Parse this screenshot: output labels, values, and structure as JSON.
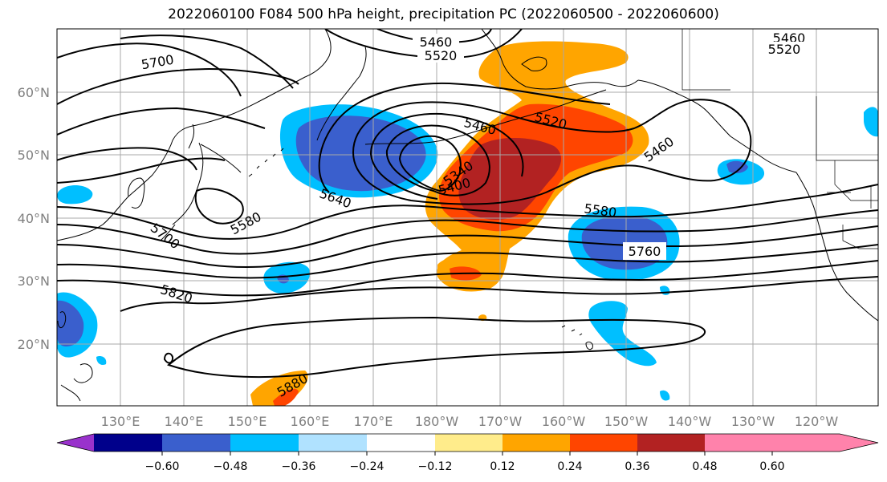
{
  "title": "2022060100 F084 500 hPa height, precipitation PC (2022060500 - 2022060600)",
  "map": {
    "latitude_labels": [
      "60°N",
      "50°N",
      "40°N",
      "30°N",
      "20°N"
    ],
    "longitude_labels": [
      "130°E",
      "140°E",
      "150°E",
      "160°E",
      "170°E",
      "180°W",
      "170°W",
      "160°W",
      "150°W",
      "140°W",
      "130°W",
      "120°W"
    ],
    "contour_labels": [
      "5700",
      "5460",
      "5520",
      "5460",
      "5520",
      "5460",
      "5520",
      "5340",
      "5400",
      "5460",
      "5640",
      "5580",
      "5580",
      "5700",
      "5760",
      "5820",
      "5880"
    ]
  },
  "colorbar": {
    "tick_labels": [
      "−0.60",
      "−0.48",
      "−0.36",
      "−0.24",
      "−0.12",
      "0.12",
      "0.24",
      "0.36",
      "0.48",
      "0.60"
    ],
    "colors": [
      "#9932cc",
      "#00008b",
      "#3a5fcd",
      "#00bfff",
      "#b0e2ff",
      "#ffffff",
      "#ffec8b",
      "#ffa500",
      "#ff4500",
      "#b22222",
      "#ff82ab"
    ]
  }
}
